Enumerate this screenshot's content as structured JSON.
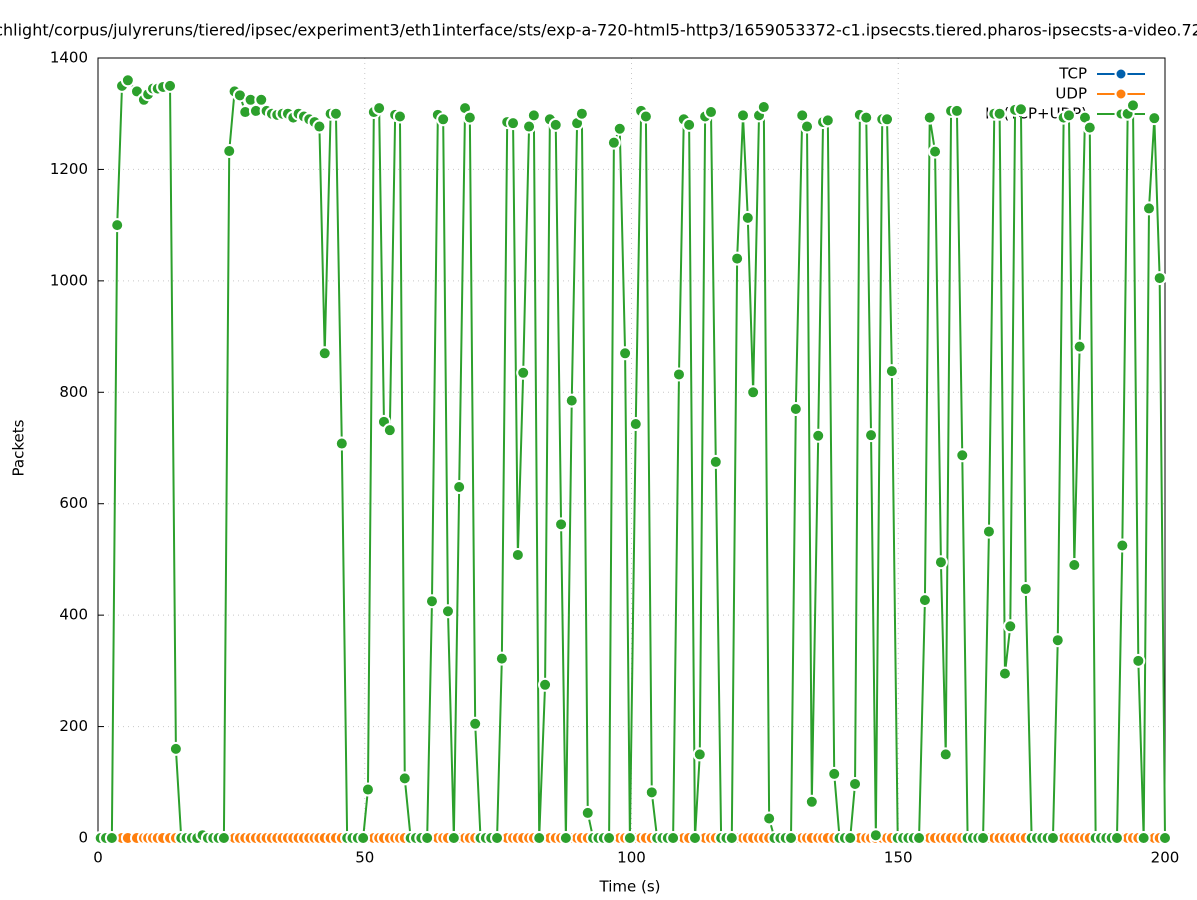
{
  "chart_data": {
    "type": "line",
    "title": "chlight/corpus/julyreruns/tiered/ipsec/experiment3/eth1interface/sts/exp-a-720-html5-http3/1659053372-c1.ipsecsts.tiered.pharos-ipsecsts-a-video.72",
    "x_label": "Time (s)",
    "y_label": "Packets",
    "x": [
      0.5,
      1.5,
      2.6,
      3.6,
      4.5,
      5.6,
      7.3,
      8.6,
      9.4,
      10.3,
      11.2,
      12.2,
      13.5,
      14.6,
      15.6,
      16.6,
      17.6,
      18.6,
      19.6,
      20.6,
      21.6,
      22.6,
      23.6,
      24.6,
      25.6,
      26.6,
      27.6,
      28.6,
      29.6,
      30.6,
      31.6,
      32.6,
      33.6,
      34.6,
      35.6,
      36.6,
      37.6,
      38.6,
      39.6,
      40.6,
      41.5,
      42.5,
      43.6,
      44.6,
      45.7,
      46.7,
      47.7,
      48.7,
      49.7,
      50.6,
      51.7,
      52.7,
      53.6,
      54.7,
      55.7,
      56.6,
      57.5,
      58.6,
      59.6,
      60.6,
      61.7,
      62.6,
      63.7,
      64.7,
      65.6,
      66.7,
      67.7,
      68.8,
      69.7,
      70.7,
      71.7,
      72.7,
      73.7,
      74.8,
      75.7,
      76.7,
      77.8,
      78.7,
      79.7,
      80.8,
      81.7,
      82.7,
      83.8,
      84.7,
      85.8,
      86.8,
      87.7,
      88.8,
      89.8,
      90.7,
      91.8,
      92.8,
      93.8,
      94.8,
      95.8,
      96.7,
      97.8,
      98.8,
      99.7,
      100.8,
      101.8,
      102.7,
      103.8,
      104.8,
      105.8,
      106.8,
      107.8,
      108.9,
      109.8,
      110.8,
      111.9,
      112.8,
      113.8,
      114.9,
      115.8,
      116.8,
      117.8,
      118.8,
      119.8,
      120.9,
      121.8,
      122.8,
      123.9,
      124.8,
      125.8,
      126.8,
      127.9,
      128.9,
      129.9,
      130.8,
      132,
      132.9,
      133.8,
      135,
      135.9,
      136.8,
      138,
      139,
      140,
      141,
      141.9,
      142.8,
      144,
      144.9,
      145.8,
      147,
      147.9,
      148.8,
      149.9,
      150.9,
      151.9,
      152.9,
      153.9,
      155,
      155.9,
      156.9,
      158,
      158.9,
      159.9,
      161,
      162,
      163,
      164,
      165,
      165.9,
      167,
      168,
      169,
      170,
      171,
      171.9,
      173,
      173.9,
      175,
      176,
      177,
      178,
      179,
      179.9,
      181,
      182,
      183,
      184,
      185,
      185.9,
      187,
      188,
      189,
      190,
      191,
      192,
      193,
      194,
      195,
      196,
      197,
      198,
      199,
      200
    ],
    "series": [
      {
        "name": "TCP",
        "color": "#0060ad",
        "values": [
          0,
          0,
          0,
          0,
          0,
          0,
          0,
          0,
          0,
          0,
          0,
          0,
          0,
          0,
          0,
          0,
          0,
          0,
          0,
          0,
          0,
          0,
          0,
          0,
          0,
          0,
          0,
          0,
          0,
          0,
          0,
          0,
          0,
          0,
          0,
          0,
          0,
          0,
          0,
          0,
          0,
          0,
          0,
          0,
          0,
          0,
          0,
          0,
          0,
          0,
          0,
          0,
          0,
          0,
          0,
          0,
          0,
          0,
          0,
          0,
          0,
          0,
          0,
          0,
          0,
          0,
          0,
          0,
          0,
          0,
          0,
          0,
          0,
          0,
          0,
          0,
          0,
          0,
          0,
          0,
          0,
          0,
          0,
          0,
          0,
          0,
          0,
          0,
          0,
          0,
          0,
          0,
          0,
          0,
          0,
          0,
          0,
          0,
          0,
          0,
          0,
          0,
          0,
          0,
          0,
          0,
          0,
          0,
          0,
          0,
          0,
          0,
          0,
          0,
          0,
          0,
          0,
          0,
          0,
          0,
          0,
          0,
          0,
          0,
          0,
          0,
          0,
          0,
          0,
          0,
          0,
          0,
          0,
          0,
          0,
          0,
          0,
          0,
          0,
          0,
          0,
          0,
          0,
          0,
          0,
          0,
          0,
          0,
          0,
          0,
          0,
          0,
          0,
          0,
          0,
          0,
          0,
          0,
          0,
          0,
          0,
          0,
          0,
          0,
          0,
          0,
          0,
          0,
          0,
          0,
          0,
          0,
          0,
          0,
          0,
          0,
          0,
          0,
          0,
          0,
          0,
          0,
          0,
          0,
          0,
          0,
          0,
          0,
          0,
          0,
          0,
          0,
          0,
          0,
          0,
          0,
          0,
          0,
          0
        ]
      },
      {
        "name": "UDP",
        "color": "#ff7f0e",
        "values": [
          0,
          0,
          0,
          0,
          0,
          0,
          0,
          0,
          0,
          0,
          0,
          0,
          0,
          0,
          0,
          0,
          0,
          0,
          0,
          0,
          0,
          0,
          0,
          0,
          0,
          0,
          0,
          0,
          0,
          0,
          0,
          0,
          0,
          0,
          0,
          0,
          0,
          0,
          0,
          0,
          0,
          0,
          0,
          0,
          0,
          0,
          0,
          0,
          0,
          0,
          0,
          0,
          0,
          0,
          0,
          0,
          0,
          0,
          0,
          0,
          0,
          0,
          0,
          0,
          0,
          0,
          0,
          0,
          0,
          0,
          0,
          0,
          0,
          0,
          0,
          0,
          0,
          0,
          0,
          0,
          0,
          0,
          0,
          0,
          0,
          0,
          0,
          0,
          0,
          0,
          0,
          0,
          0,
          0,
          0,
          0,
          0,
          0,
          0,
          0,
          0,
          0,
          0,
          0,
          0,
          0,
          0,
          0,
          0,
          0,
          0,
          0,
          0,
          0,
          0,
          0,
          0,
          0,
          0,
          0,
          0,
          0,
          0,
          0,
          0,
          0,
          0,
          0,
          0,
          0,
          0,
          0,
          0,
          0,
          0,
          0,
          0,
          0,
          0,
          0,
          0,
          0,
          0,
          0,
          0,
          0,
          0,
          0,
          0,
          0,
          0,
          0,
          0,
          0,
          0,
          0,
          0,
          0,
          0,
          0,
          0,
          0,
          0,
          0,
          0,
          0,
          0,
          0,
          0,
          0,
          0,
          0,
          0,
          0,
          0,
          0,
          0,
          0,
          0,
          0,
          0,
          0,
          0,
          0,
          0,
          0,
          0,
          0,
          0,
          0,
          0,
          0,
          0,
          0,
          0,
          0,
          0,
          0,
          0
        ]
      },
      {
        "name": "IP (TCP+UDP)",
        "color": "#2ca02c",
        "values": [
          0,
          0,
          0,
          1100,
          1350,
          1360,
          1340,
          1325,
          1335,
          1345,
          1345,
          1348,
          1350,
          160,
          0,
          0,
          0,
          0,
          5,
          0,
          0,
          0,
          0,
          1233,
          1340,
          1333,
          1303,
          1325,
          1305,
          1325,
          1305,
          1300,
          1298,
          1300,
          1300,
          1293,
          1300,
          1295,
          1290,
          1285,
          1277,
          870,
          1300,
          1300,
          708,
          0,
          0,
          0,
          0,
          87,
          1303,
          1310,
          747,
          732,
          1298,
          1295,
          107,
          0,
          0,
          0,
          0,
          425,
          1298,
          1290,
          407,
          0,
          630,
          1310,
          1293,
          205,
          0,
          0,
          0,
          0,
          322,
          1285,
          1283,
          508,
          835,
          1277,
          1297,
          0,
          275,
          1290,
          1280,
          563,
          0,
          785,
          1283,
          1300,
          45,
          0,
          0,
          0,
          0,
          1248,
          1273,
          870,
          0,
          743,
          1305,
          1295,
          82,
          0,
          0,
          0,
          0,
          832,
          1290,
          1280,
          0,
          150,
          1295,
          1303,
          675,
          0,
          0,
          0,
          1040,
          1297,
          1113,
          800,
          1297,
          1312,
          35,
          0,
          0,
          0,
          0,
          770,
          1297,
          1277,
          65,
          722,
          1285,
          1288,
          115,
          0,
          0,
          0,
          97,
          1298,
          1293,
          723,
          5,
          1290,
          1290,
          838,
          0,
          0,
          0,
          0,
          0,
          427,
          1293,
          1232,
          495,
          150,
          1305,
          1305,
          687,
          0,
          0,
          0,
          0,
          550,
          1300,
          1300,
          295,
          380,
          1307,
          1308,
          447,
          0,
          0,
          0,
          0,
          0,
          355,
          1293,
          1297,
          490,
          882,
          1293,
          1275,
          0,
          0,
          0,
          0,
          0,
          525,
          1300,
          1315,
          318,
          0,
          1130,
          1292,
          1005,
          0
        ]
      }
    ],
    "xlim": [
      0,
      200
    ],
    "xticks": [
      0,
      50,
      100,
      150,
      200
    ],
    "ylim": [
      0,
      1400
    ],
    "yticks": [
      0,
      200,
      400,
      600,
      800,
      1000,
      1200,
      1400
    ],
    "grid": true,
    "legend": "top-right"
  }
}
